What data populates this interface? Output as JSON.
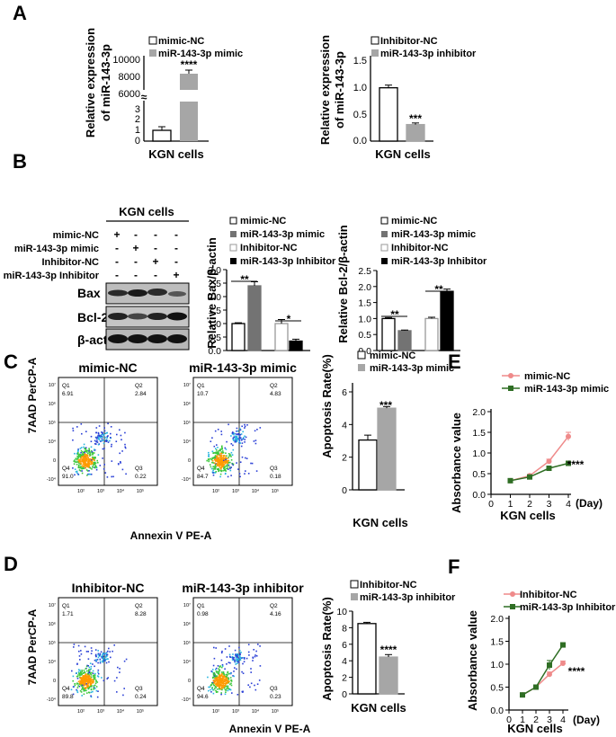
{
  "colors": {
    "gray": "#a6a6a6",
    "dark_gray": "#737373",
    "light_gray": "#c8c8c8",
    "black": "#000000",
    "pink": "#ef8a8a",
    "green": "#2f6e24",
    "white": "#ffffff"
  },
  "panels": {
    "A": "A",
    "B": "B",
    "C": "C",
    "D": "D",
    "E": "E",
    "F": "F"
  },
  "common": {
    "kgn": "KGN cells",
    "stars4": "****",
    "stars3": "***",
    "stars2": "**",
    "stars1": "*",
    "axis_break": "≈"
  },
  "panelA": {
    "left": {
      "ylabel1": "Relative expression",
      "ylabel2": "of miR-143-3p",
      "legend": [
        "mimic-NC",
        "miR-143-3p mimic"
      ],
      "ticks_low": [
        "0",
        "1",
        "2",
        "3"
      ],
      "ticks_high": [
        "6000",
        "8000",
        "10000"
      ]
    },
    "right": {
      "ylabel1": "Relative expression",
      "ylabel2": "of miR-143-3p",
      "legend": [
        "Inhibitor-NC",
        "miR-143-3p inhibitor"
      ],
      "ticks": [
        "0.0",
        "0.5",
        "1.0",
        "1.5"
      ]
    }
  },
  "panelB": {
    "blot": {
      "title": "KGN cells",
      "row_labels": [
        "mimic-NC",
        "miR-143-3p mimic",
        "Inhibitor-NC",
        "miR-143-3p Inhibitor"
      ],
      "pattern": [
        [
          "+",
          "-",
          "-",
          "-"
        ],
        [
          "-",
          "+",
          "-",
          "-"
        ],
        [
          "-",
          "-",
          "+",
          "-"
        ],
        [
          "-",
          "-",
          "-",
          "+"
        ]
      ],
      "bands": [
        "Bax",
        "Bcl-2",
        "β-actin"
      ]
    },
    "legend": [
      "mimic-NC",
      "miR-143-3p mimic",
      "Inhibitor-NC",
      "miR-143-3p Inhibitor"
    ],
    "bax": {
      "ylabel": "Relative Bax/β-actin",
      "ticks": [
        "0.0",
        "0.5",
        "1.0",
        "1.5",
        "2.0",
        "2.5",
        "3.0"
      ]
    },
    "bcl": {
      "ylabel": "Relative Bcl-2/β-actin",
      "ticks": [
        "0.0",
        "0.5",
        "1.0",
        "1.5",
        "2.0",
        "2.5"
      ]
    }
  },
  "flow": {
    "ylabel": "7AAD PerCP-A",
    "xlabel": "Annexin V PE-A",
    "c_plots": [
      {
        "title": "mimic-NC",
        "q1": "Q1",
        "q1v": "6.91",
        "q2": "Q2",
        "q2v": "2.84",
        "q3": "Q3",
        "q3v": "0.22",
        "q4": "Q4",
        "q4v": "91.0"
      },
      {
        "title": "miR-143-3p mimic",
        "q1": "Q1",
        "q1v": "10.7",
        "q2": "Q2",
        "q2v": "4.83",
        "q3": "Q3",
        "q3v": "0.18",
        "q4": "Q4",
        "q4v": "84.7"
      }
    ],
    "d_plots": [
      {
        "title": "Inhibitor-NC",
        "q1": "Q1",
        "q1v": "1.71",
        "q2": "Q2",
        "q2v": "8.28",
        "q3": "Q3",
        "q3v": "0.24",
        "q4": "Q4",
        "q4v": "89.8"
      },
      {
        "title": "miR-143-3p inhibitor",
        "q1": "Q1",
        "q1v": "0.98",
        "q2": "Q2",
        "q2v": "4.16",
        "q3": "Q3",
        "q3v": "0.23",
        "q4": "Q4",
        "q4v": "94.6"
      }
    ],
    "yticks": [
      "10⁷",
      "10⁶",
      "10⁵",
      "10⁴",
      "0",
      "-10⁴"
    ],
    "xticks": [
      "10²",
      "10³",
      "10⁴",
      "10⁵"
    ]
  },
  "panelC": {
    "ylabel": "Apoptosis Rate(%)",
    "legend": [
      "mimic-NC",
      "miR-143-3p mimic"
    ],
    "ticks": [
      "0",
      "2",
      "4",
      "6"
    ]
  },
  "panelD": {
    "ylabel": "Apoptosis Rate(%)",
    "legend": [
      "Inhibitor-NC",
      "miR-143-3p inhibitor"
    ],
    "ticks": [
      "0",
      "2",
      "4",
      "6",
      "8",
      "10"
    ]
  },
  "panelE": {
    "ylabel": "Absorbance value",
    "legend": [
      "mimic-NC",
      "miR-143-3p mimic"
    ],
    "yticks": [
      "0.0",
      "0.5",
      "1.0",
      "1.5",
      "2.0"
    ],
    "xticks": [
      "0",
      "1",
      "2",
      "3",
      "4"
    ],
    "xunit": "(Day)"
  },
  "panelF": {
    "ylabel": "Absorbance value",
    "legend": [
      "Inhibitor-NC",
      "miR-143-3p Inhibitor"
    ],
    "yticks": [
      "0.0",
      "0.5",
      "1.0",
      "1.5",
      "2.0"
    ],
    "xticks": [
      "0",
      "1",
      "2",
      "3",
      "4"
    ],
    "xunit": "(Day)"
  },
  "chart_data": [
    {
      "type": "bar",
      "id": "A-left",
      "categories": [
        "mimic-NC",
        "miR-143-3p mimic"
      ],
      "values": [
        1.0,
        8800
      ],
      "errors": [
        0.2,
        300
      ],
      "ylim": [
        0,
        10000
      ],
      "axis_break": [
        3,
        6000
      ]
    },
    {
      "type": "bar",
      "id": "A-right",
      "categories": [
        "Inhibitor-NC",
        "miR-143-3p inhibitor"
      ],
      "values": [
        1.0,
        0.31
      ],
      "errors": [
        0.05,
        0.03
      ],
      "ylim": [
        0,
        1.5
      ]
    },
    {
      "type": "bar",
      "id": "B-bax",
      "categories": [
        "mimic-NC",
        "miR-143-3p mimic",
        "Inhibitor-NC",
        "miR-143-3p Inhibitor"
      ],
      "values": [
        1.0,
        2.4,
        1.0,
        0.35
      ],
      "errors": [
        0.03,
        0.15,
        0.15,
        0.07
      ],
      "ylim": [
        0,
        3.0
      ]
    },
    {
      "type": "bar",
      "id": "B-bcl",
      "categories": [
        "mimic-NC",
        "miR-143-3p mimic",
        "Inhibitor-NC",
        "miR-143-3p Inhibitor"
      ],
      "values": [
        1.0,
        0.62,
        1.0,
        1.85
      ],
      "errors": [
        0.03,
        0.02,
        0.04,
        0.07
      ],
      "ylim": [
        0,
        2.5
      ]
    },
    {
      "type": "bar",
      "id": "C-apoptosis",
      "categories": [
        "mimic-NC",
        "miR-143-3p mimic"
      ],
      "values": [
        3.05,
        5.0
      ],
      "errors": [
        0.3,
        0.1
      ],
      "ylim": [
        0,
        6
      ]
    },
    {
      "type": "bar",
      "id": "D-apoptosis",
      "categories": [
        "Inhibitor-NC",
        "miR-143-3p inhibitor"
      ],
      "values": [
        8.5,
        4.45
      ],
      "errors": [
        0.15,
        0.3
      ],
      "ylim": [
        0,
        10
      ]
    },
    {
      "type": "line",
      "id": "E-absorbance",
      "x": [
        1,
        2,
        3,
        4
      ],
      "series": [
        {
          "name": "mimic-NC",
          "values": [
            0.33,
            0.45,
            0.8,
            1.4
          ]
        },
        {
          "name": "miR-143-3p mimic",
          "values": [
            0.33,
            0.42,
            0.63,
            0.75
          ]
        }
      ],
      "errors": [
        [
          0.02,
          0.03,
          0.05,
          0.1
        ],
        [
          0.02,
          0.03,
          0.04,
          0.05
        ]
      ],
      "xlim": [
        0,
        4
      ],
      "ylim": [
        0,
        2.0
      ]
    },
    {
      "type": "line",
      "id": "F-absorbance",
      "x": [
        1,
        2,
        3,
        4
      ],
      "series": [
        {
          "name": "Inhibitor-NC",
          "values": [
            0.33,
            0.5,
            0.78,
            1.02
          ]
        },
        {
          "name": "miR-143-3p Inhibitor",
          "values": [
            0.33,
            0.5,
            0.98,
            1.42
          ]
        }
      ],
      "errors": [
        [
          0.02,
          0.03,
          0.05,
          0.05
        ],
        [
          0.02,
          0.03,
          0.1,
          0.05
        ]
      ],
      "xlim": [
        0,
        4
      ],
      "ylim": [
        0,
        2.0
      ]
    }
  ]
}
